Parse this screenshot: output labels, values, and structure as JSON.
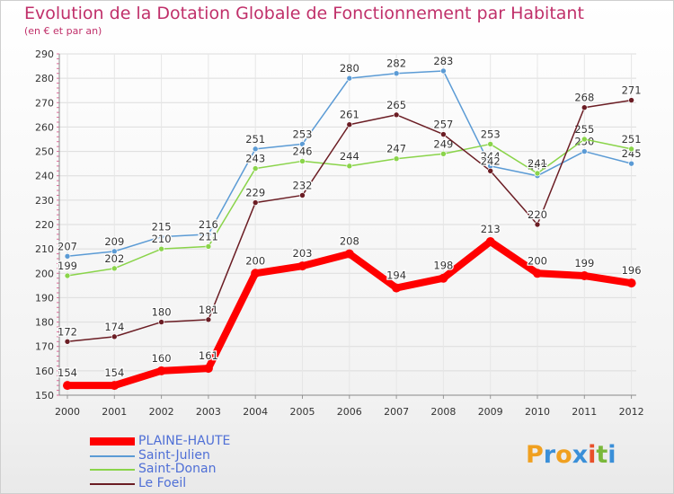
{
  "title": "Evolution de la Dotation Globale de Fonctionnement par Habitant",
  "subtitle": "(en € et par an)",
  "logo": "Proxiti",
  "chart_data": {
    "type": "line",
    "title": "Evolution de la Dotation Globale de Fonctionnement par Habitant",
    "subtitle": "(en € et par an)",
    "xlabel": "",
    "ylabel": "",
    "ylim": [
      150,
      290
    ],
    "yticks": [
      150,
      160,
      170,
      180,
      190,
      200,
      210,
      220,
      230,
      240,
      250,
      260,
      270,
      280,
      290
    ],
    "categories": [
      "2000",
      "2001",
      "2002",
      "2003",
      "2004",
      "2005",
      "2006",
      "2007",
      "2008",
      "2009",
      "2010",
      "2011",
      "2012"
    ],
    "grid": true,
    "legend_position": "bottom-left",
    "series": [
      {
        "name": "PLAINE-HAUTE",
        "color": "#ff0000",
        "values": [
          154,
          154,
          160,
          161,
          200,
          203,
          208,
          194,
          198,
          213,
          200,
          199,
          196
        ]
      },
      {
        "name": "Saint-Julien",
        "color": "#5b9bd5",
        "values": [
          207,
          209,
          215,
          216,
          251,
          253,
          280,
          282,
          283,
          244,
          240,
          250,
          245
        ]
      },
      {
        "name": "Saint-Donan",
        "color": "#8ad44a",
        "values": [
          199,
          202,
          210,
          211,
          243,
          246,
          244,
          247,
          249,
          253,
          241,
          255,
          251
        ]
      },
      {
        "name": "Le Foeil",
        "color": "#6b1d24",
        "values": [
          172,
          174,
          180,
          181,
          229,
          232,
          261,
          265,
          257,
          242,
          220,
          268,
          271
        ]
      }
    ]
  }
}
